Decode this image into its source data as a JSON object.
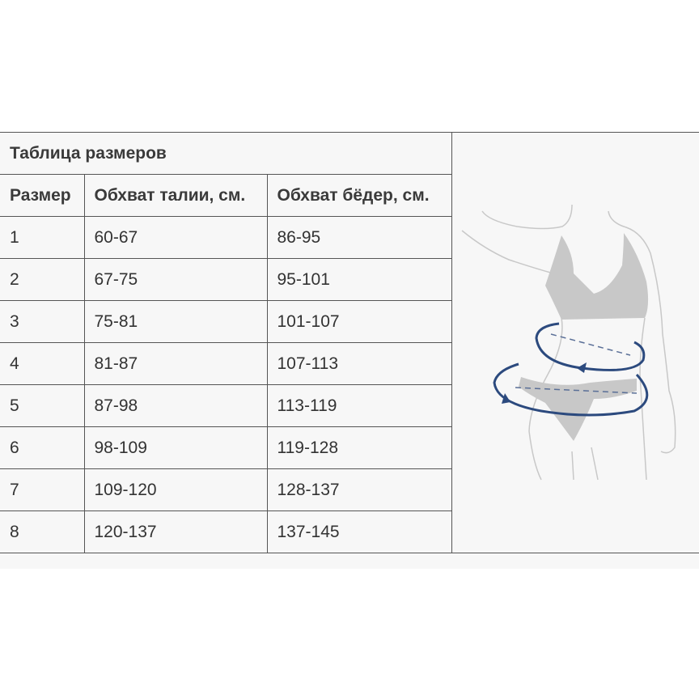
{
  "table": {
    "title": "Таблица размеров",
    "headers": [
      "Размер",
      "Обхват талии, см.",
      "Обхват бёдер, см."
    ],
    "rows": [
      [
        "1",
        "60-67",
        "86-95"
      ],
      [
        "2",
        "67-75",
        "95-101"
      ],
      [
        "3",
        "75-81",
        "101-107"
      ],
      [
        "4",
        "81-87",
        "107-113"
      ],
      [
        "5",
        "87-98",
        "113-119"
      ],
      [
        "6",
        "98-109",
        "119-128"
      ],
      [
        "7",
        "109-120",
        "128-137"
      ],
      [
        "8",
        "120-137",
        "137-145"
      ]
    ]
  },
  "figure": {
    "icon": "body-measurement-illustration",
    "accent": "#2c4a7e"
  }
}
